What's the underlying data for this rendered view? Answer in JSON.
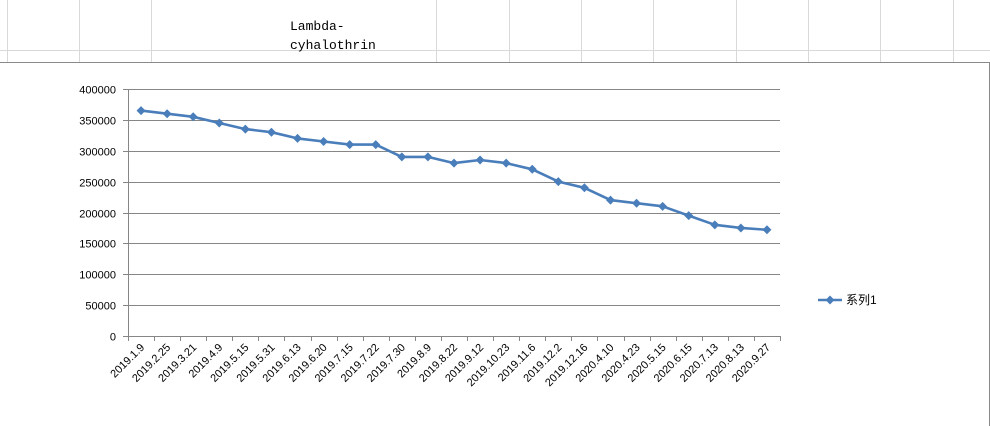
{
  "sheet": {
    "cell_title": "Lambda-\ncyhalothrin"
  },
  "chart_data": {
    "type": "line",
    "title": "",
    "xlabel": "",
    "ylabel": "",
    "ylim": [
      0,
      400000
    ],
    "yticks": [
      0,
      50000,
      100000,
      150000,
      200000,
      250000,
      300000,
      350000,
      400000
    ],
    "grid": "horizontal",
    "legend_position": "right",
    "categories": [
      "2019.1.9",
      "2019.2.25",
      "2019.3.21",
      "2019.4.9",
      "2019.5.15",
      "2019.5.31",
      "2019.6.13",
      "2019.6.20",
      "2019.7.15",
      "2019.7.22",
      "2019.7.30",
      "2019.8.9",
      "2019.8.22",
      "2019.9.12",
      "2019.10.23",
      "2019.11.6",
      "2019.12.2",
      "2019.12.16",
      "2020.4.10",
      "2020.4.23",
      "2020.5.15",
      "2020.6.15",
      "2020.7.13",
      "2020.8.13",
      "2020.9.27"
    ],
    "series": [
      {
        "name": "系列1",
        "color": "#4a7ebb",
        "values": [
          365000,
          360000,
          355000,
          345000,
          335000,
          330000,
          320000,
          315000,
          310000,
          310000,
          290000,
          290000,
          280000,
          285000,
          280000,
          270000,
          250000,
          240000,
          220000,
          215000,
          210000,
          195000,
          180000,
          175000,
          172000
        ]
      }
    ]
  }
}
